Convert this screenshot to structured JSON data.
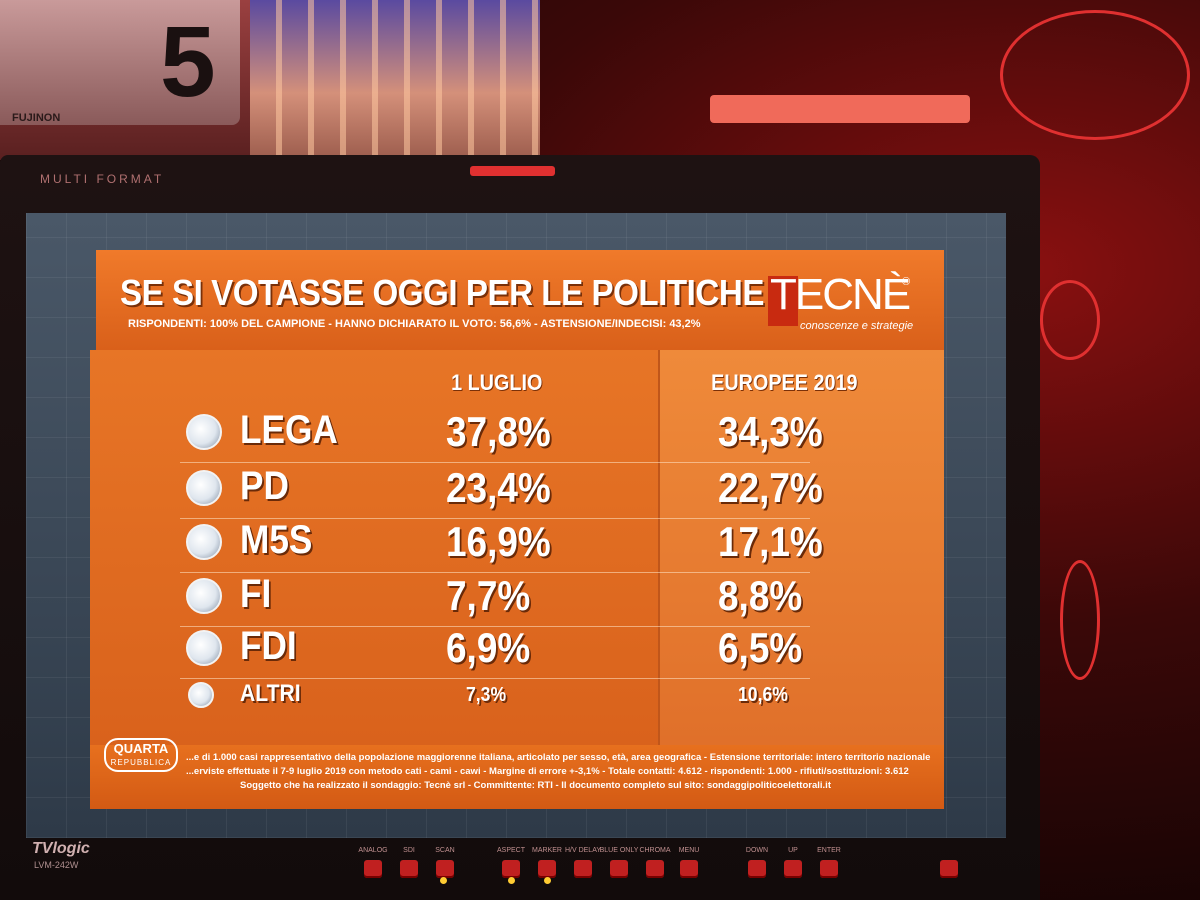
{
  "studio": {
    "camera_number": "5",
    "camera_brand": "FUJINON"
  },
  "monitor": {
    "label": "MULTI FORMAT",
    "brand": "TVlogic",
    "model": "LVM-242W",
    "buttons": [
      "ANALOG",
      "SDI",
      "SCAN",
      "ASPECT",
      "MARKER",
      "H/V DELAY",
      "BLUE ONLY",
      "CHROMA",
      "MENU",
      "DOWN",
      "UP",
      "ENTER"
    ]
  },
  "graphic": {
    "title": "SE SI VOTASSE OGGI PER LE POLITICHE",
    "subtitle": "RISPONDENTI: 100% DEL CAMPIONE - HANNO DICHIARATO IL VOTO: 56,6% - ASTENSIONE/INDECISI: 43,2%",
    "logo": "TECNÈ",
    "logo_tagline": "conoscenze e strategie",
    "columns": [
      "1 LUGLIO",
      "EUROPEE 2019"
    ],
    "footer_lines": [
      "...e di 1.000 casi rappresentativo della popolazione maggiorenne italiana, articolato per sesso, età, area geografica - Estensione territoriale: intero territorio nazionale",
      "...erviste effettuate il 7-9 luglio 2019 con metodo cati - cami - cawi - Margine di errore +-3,1% - Totale contatti: 4.612 - rispondenti: 1.000 - rifiuti/sostituzioni: 3.612",
      "Soggetto che ha realizzato il sondaggio: Tecnè srl - Committente: RTI - Il documento completo sul sito: sondaggipoliticoelettorali.it"
    ],
    "show_badge": "QUARTA",
    "show_badge_sub": "REPUBBLICA"
  },
  "chart_data": {
    "type": "table",
    "title": "SE SI VOTASSE OGGI PER LE POLITICHE",
    "columns": [
      "1 LUGLIO",
      "EUROPEE 2019"
    ],
    "rows": [
      {
        "party": "LEGA",
        "values": [
          "37,8%",
          "34,3%"
        ]
      },
      {
        "party": "PD",
        "values": [
          "23,4%",
          "22,7%"
        ]
      },
      {
        "party": "M5S",
        "values": [
          "16,9%",
          "17,1%"
        ]
      },
      {
        "party": "FI",
        "values": [
          "7,7%",
          "8,8%"
        ]
      },
      {
        "party": "FDI",
        "values": [
          "6,9%",
          "6,5%"
        ]
      },
      {
        "party": "ALTRI",
        "values": [
          "7,3%",
          "10,6%"
        ]
      }
    ]
  }
}
